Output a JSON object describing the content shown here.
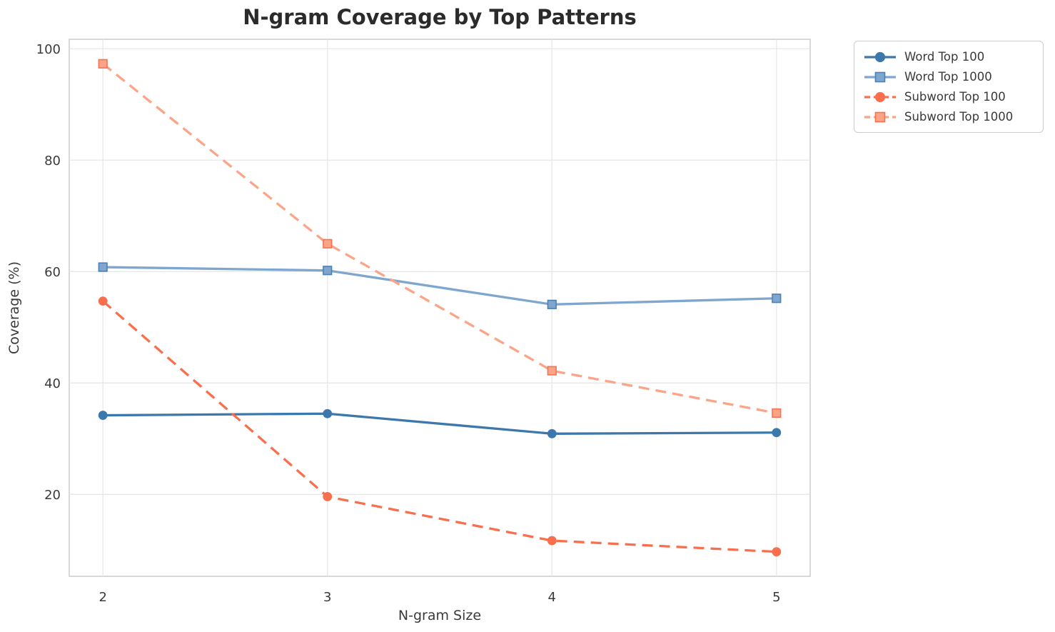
{
  "chart_data": {
    "type": "line",
    "title": "N-gram Coverage by Top Patterns",
    "xlabel": "N-gram Size",
    "ylabel": "Coverage (%)",
    "x": [
      2,
      3,
      4,
      5
    ],
    "xtick_labels": [
      "2",
      "3",
      "4",
      "5"
    ],
    "yticks": [
      20,
      40,
      60,
      80,
      100
    ],
    "ytick_labels": [
      "20",
      "40",
      "60",
      "80",
      "100"
    ],
    "xlim": [
      1.85,
      5.15
    ],
    "ylim": [
      5.3,
      101.7
    ],
    "grid": true,
    "legend_position": "outside-upper-right",
    "series": [
      {
        "name": "Word Top 100",
        "values": [
          34.2,
          34.5,
          30.9,
          31.1
        ],
        "color": "#3c78ab",
        "marker_edge_color": "#3c78ab",
        "line_style": "solid",
        "marker": "circle"
      },
      {
        "name": "Word Top 1000",
        "values": [
          60.8,
          60.2,
          54.1,
          55.2
        ],
        "color": "#7ea6cf",
        "marker_edge_color": "#4d80b4",
        "line_style": "solid",
        "marker": "square"
      },
      {
        "name": "Subword Top 100",
        "values": [
          54.7,
          19.6,
          11.7,
          9.7
        ],
        "color": "#f96f4e",
        "marker_edge_color": "#f96f4e",
        "line_style": "dashed",
        "marker": "circle"
      },
      {
        "name": "Subword Top 1000",
        "values": [
          97.3,
          65.0,
          42.2,
          34.6
        ],
        "color": "#fba488",
        "marker_edge_color": "#f9714f",
        "line_style": "dashed",
        "marker": "square"
      }
    ]
  },
  "styles": {
    "background": "#ffffff",
    "grid_color": "#e8e8e8",
    "spine_color": "#cccccc",
    "tick_text_color": "#3a3a3a",
    "title_color": "#2b2b2b"
  }
}
